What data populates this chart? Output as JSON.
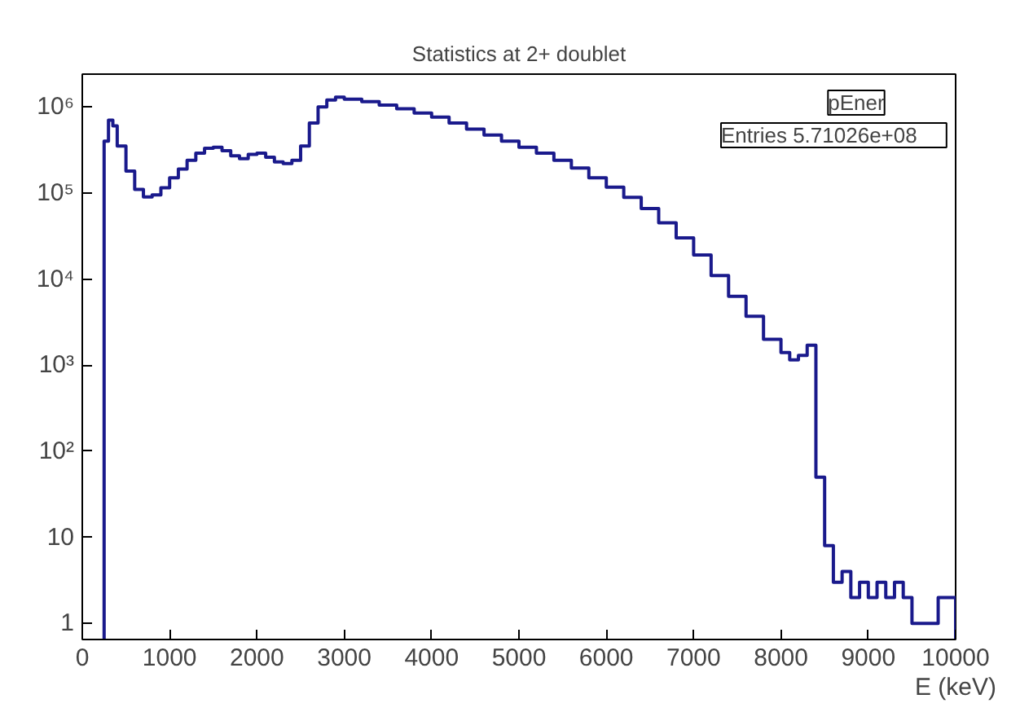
{
  "chart_data": {
    "type": "histogram",
    "title": "Statistics at 2+ doublet",
    "xlabel": "E (keV)",
    "bins": [
      250,
      300,
      350,
      400,
      500,
      600,
      700,
      800,
      900,
      1000,
      1100,
      1200,
      1300,
      1400,
      1500,
      1600,
      1700,
      1800,
      1900,
      2000,
      2100,
      2200,
      2300,
      2400,
      2500,
      2600,
      2700,
      2800,
      2900,
      3000,
      3200,
      3400,
      3600,
      3800,
      4000,
      4200,
      4400,
      4600,
      4800,
      5000,
      5200,
      5400,
      5600,
      5800,
      6000,
      6200,
      6400,
      6600,
      6800,
      7000,
      7200,
      7400,
      7600,
      7800,
      8000,
      8100,
      8200,
      8300,
      8400,
      8500,
      8600,
      8700,
      8800,
      8900,
      9000,
      9100,
      9200,
      9300,
      9400,
      9500,
      9600,
      9700,
      9800,
      9900,
      10000
    ],
    "values": [
      400000,
      700000,
      600000,
      350000,
      180000,
      110000,
      90000,
      95000,
      115000,
      150000,
      190000,
      240000,
      290000,
      330000,
      340000,
      310000,
      270000,
      250000,
      280000,
      290000,
      260000,
      230000,
      220000,
      240000,
      350000,
      650000,
      1000000,
      1200000,
      1300000,
      1230000,
      1150000,
      1050000,
      950000,
      850000,
      760000,
      650000,
      550000,
      470000,
      400000,
      340000,
      290000,
      240000,
      195000,
      150000,
      117000,
      89000,
      66000,
      45000,
      30000,
      19000,
      11000,
      6300,
      3700,
      2000,
      1400,
      1150,
      1300,
      1700,
      50,
      8,
      3,
      4,
      2,
      3,
      2,
      3,
      2,
      3,
      2,
      1,
      1,
      1,
      2,
      2
    ],
    "color": "#1a1a8c",
    "xlim": [
      0,
      10000
    ],
    "ylim": [
      0.65,
      2400000
    ],
    "log": "y",
    "grid": false,
    "xticks": [
      0,
      1000,
      2000,
      3000,
      4000,
      5000,
      6000,
      7000,
      8000,
      9000,
      10000
    ],
    "yticks": [
      1,
      10,
      {
        "value": 100,
        "label": "10²"
      },
      {
        "value": 1000,
        "label": "10³"
      },
      {
        "value": 10000,
        "label": "10⁴"
      },
      {
        "value": 100000,
        "label": "10⁵"
      },
      {
        "value": 1000000,
        "label": "10⁶"
      }
    ],
    "annotations": [
      "pEner",
      "Entries      5.71026e+08"
    ]
  }
}
